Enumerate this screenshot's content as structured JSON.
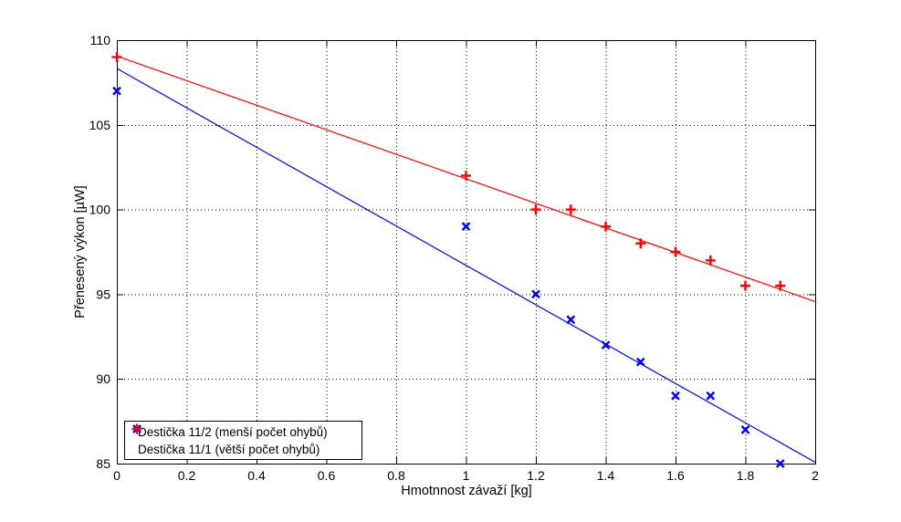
{
  "figure": {
    "background": "#ffffff",
    "frame_color": "#000000",
    "grid_style": "dotted"
  },
  "chart_data": {
    "type": "scatter",
    "title": "",
    "xlabel": "Hmotnnost závaží [kg]",
    "ylabel": "Přenesený výkon [µW]",
    "xlim": [
      0,
      2
    ],
    "ylim": [
      85,
      110
    ],
    "xticks": [
      0,
      0.2,
      0.4,
      0.6,
      0.8,
      1,
      1.2,
      1.4,
      1.6,
      1.8,
      2
    ],
    "xtick_labels": [
      "0",
      "0.2",
      "0.4",
      "0.6",
      "0.8",
      "1",
      "1.2",
      "1.4",
      "1.6",
      "1.8",
      "2"
    ],
    "yticks": [
      85,
      90,
      95,
      100,
      105,
      110
    ],
    "ytick_labels": [
      "85",
      "90",
      "95",
      "100",
      "105",
      "110"
    ],
    "grid": true,
    "legend_position": "lower-left",
    "series": [
      {
        "name": "Destička 11/2 (menší počet ohybů)",
        "marker": "x",
        "color": "#0000ff",
        "x": [
          0,
          1,
          1.2,
          1.3,
          1.4,
          1.5,
          1.6,
          1.7,
          1.8,
          1.9
        ],
        "y": [
          107,
          99,
          95,
          93.5,
          92,
          91,
          89,
          89,
          87,
          85
        ],
        "fit_line": {
          "x": [
            0,
            2
          ],
          "y": [
            108.33,
            85.08
          ]
        }
      },
      {
        "name": "Destička 11/1 (větší počet ohybů)",
        "marker": "+",
        "color": "#ff0000",
        "x": [
          0,
          1,
          1.2,
          1.3,
          1.4,
          1.5,
          1.6,
          1.7,
          1.8,
          1.9
        ],
        "y": [
          109,
          102,
          100,
          100,
          99,
          98,
          97.5,
          97,
          95.5,
          95.5
        ],
        "fit_line": {
          "x": [
            0,
            2
          ],
          "y": [
            109.06,
            94.57
          ]
        }
      }
    ]
  }
}
